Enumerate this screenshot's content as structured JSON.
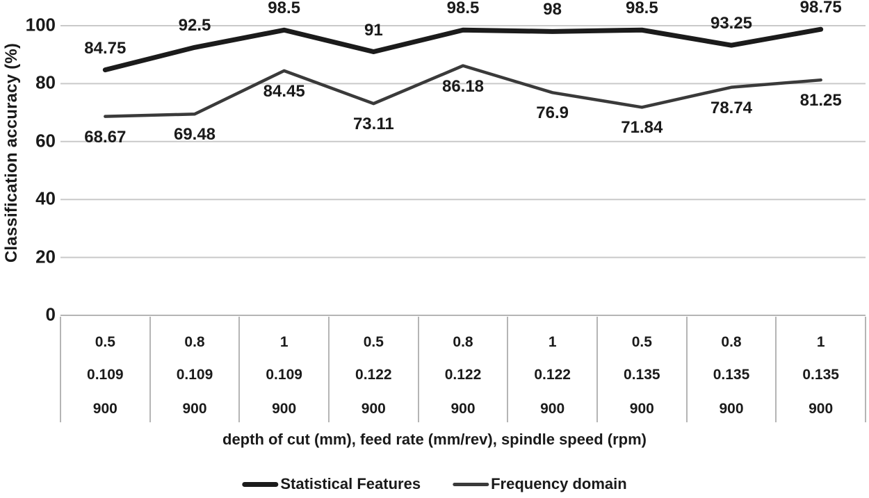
{
  "chart_data": {
    "type": "line",
    "title": "",
    "ylabel": "Classification accuracy (%)",
    "xlabel": "depth of cut (mm), feed rate (mm/rev), spindle speed (rpm)",
    "ylim": [
      0,
      100
    ],
    "yticks": [
      0,
      20,
      40,
      60,
      80,
      100
    ],
    "grid": true,
    "legend_position": "bottom",
    "gridline_color": "#c9c9c9",
    "table_border_color": "#b5b5b5",
    "x_category_rows": [
      [
        "0.5",
        "0.8",
        "1",
        "0.5",
        "0.8",
        "1",
        "0.5",
        "0.8",
        "1"
      ],
      [
        "0.109",
        "0.109",
        "0.109",
        "0.122",
        "0.122",
        "0.122",
        "0.135",
        "0.135",
        "0.135"
      ],
      [
        "900",
        "900",
        "900",
        "900",
        "900",
        "900",
        "900",
        "900",
        "900"
      ]
    ],
    "series": [
      {
        "name": "Statistical Features",
        "color": "#1b1b1b",
        "line_width": 7,
        "label_side": "above",
        "values": [
          84.75,
          92.5,
          98.5,
          91,
          98.5,
          98,
          98.5,
          93.25,
          98.75
        ]
      },
      {
        "name": "Frequency domain",
        "color": "#3a3a3a",
        "line_width": 4.5,
        "label_side": "below",
        "values": [
          68.67,
          69.48,
          84.45,
          73.11,
          86.18,
          76.9,
          71.84,
          78.74,
          81.25
        ]
      }
    ]
  }
}
